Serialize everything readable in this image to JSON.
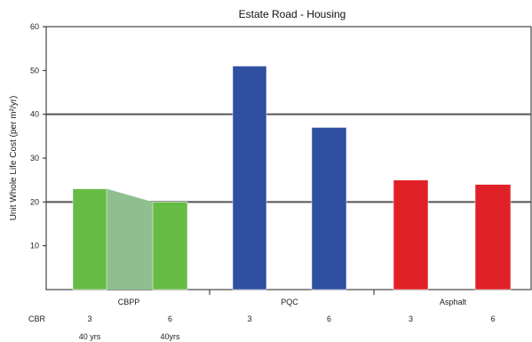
{
  "chart_data": {
    "type": "bar",
    "title": "Estate Road - Housing",
    "ylabel": "Unit Whole Life Cost (per m²/yr)",
    "xlabel": "",
    "ylim": [
      0,
      60
    ],
    "yticks": [
      "10",
      "20",
      "30",
      "40",
      "50",
      "60"
    ],
    "ytick_values": [
      10,
      20,
      30,
      40,
      50,
      60
    ],
    "reference_lines": [
      20,
      40
    ],
    "groups": [
      {
        "name": "CBPP",
        "color": "#66bb44",
        "trend_color": "#8fbf8f"
      },
      {
        "name": "PQC",
        "color": "#2f4fa0"
      },
      {
        "name": "Asphalt",
        "color": "#e02127"
      }
    ],
    "bars": [
      {
        "group": "CBPP",
        "cbr": "3",
        "life": "40 yrs",
        "value": 23
      },
      {
        "group": "CBPP",
        "cbr": "6",
        "life": "40yrs",
        "value": 20
      },
      {
        "group": "PQC",
        "cbr": "3",
        "value": 51
      },
      {
        "group": "PQC",
        "cbr": "6",
        "value": 37
      },
      {
        "group": "Asphalt",
        "cbr": "3",
        "value": 25
      },
      {
        "group": "Asphalt",
        "cbr": "6",
        "value": 24
      }
    ],
    "row_label": "CBR",
    "grid": false
  }
}
